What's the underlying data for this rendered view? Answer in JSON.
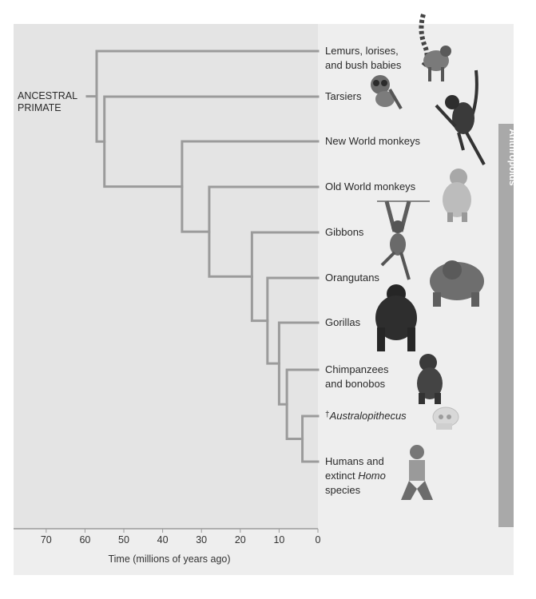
{
  "root_label": [
    "ANCESTRAL",
    "PRIMATE"
  ],
  "group_bar_label": "Anthropoids",
  "axis": {
    "title": "Time (millions of years ago)",
    "ticks": [
      "70",
      "60",
      "50",
      "40",
      "30",
      "20",
      "10",
      "0"
    ]
  },
  "taxa": [
    {
      "id": "lemurs",
      "lines": [
        "Lemurs, lorises,",
        "and bush babies"
      ],
      "italic": false,
      "extinct": false,
      "icon": "lemur-icon"
    },
    {
      "id": "tarsiers",
      "lines": [
        "Tarsiers"
      ],
      "italic": false,
      "extinct": false,
      "icon": "tarsier-icon"
    },
    {
      "id": "new-world-monkeys",
      "lines": [
        "New World monkeys"
      ],
      "italic": false,
      "extinct": false,
      "icon": "spider-monkey-icon"
    },
    {
      "id": "old-world-monkeys",
      "lines": [
        "Old World monkeys"
      ],
      "italic": false,
      "extinct": false,
      "icon": "macaque-icon"
    },
    {
      "id": "gibbons",
      "lines": [
        "Gibbons"
      ],
      "italic": false,
      "extinct": false,
      "icon": "gibbon-icon"
    },
    {
      "id": "orangutans",
      "lines": [
        "Orangutans"
      ],
      "italic": false,
      "extinct": false,
      "icon": "orangutan-icon"
    },
    {
      "id": "gorillas",
      "lines": [
        "Gorillas"
      ],
      "italic": false,
      "extinct": false,
      "icon": "gorilla-icon"
    },
    {
      "id": "chimpanzees",
      "lines": [
        "Chimpanzees",
        "and bonobos"
      ],
      "italic": false,
      "extinct": false,
      "icon": "chimpanzee-icon"
    },
    {
      "id": "australopithecus",
      "lines": [
        "Australopithecus"
      ],
      "italic": true,
      "extinct": true,
      "extinct_mark": "†",
      "icon": "skull-fossil-icon"
    },
    {
      "id": "humans",
      "lines": [
        "Humans and",
        "extinct ",
        "Homo",
        " species"
      ],
      "italic": false,
      "extinct": false,
      "icon": "human-icon"
    }
  ],
  "divergences_mya": {
    "root_split": 57,
    "tarsier_anthropoid": 55,
    "new_world_old_world": 35,
    "old_world_monkeys_apes": 28,
    "gibbons_great_apes": 17,
    "orangutans_african_apes": 13,
    "gorillas_hominins": 10,
    "chimpanzees_hominins": 8,
    "australopithecus_homo": 4
  },
  "colors": {
    "panel": "#eeeeee",
    "time_band": "#e4e4e4",
    "branch": "#9b9b9b",
    "group_bar": "#a9a9a9",
    "text": "#2a2a2a"
  }
}
